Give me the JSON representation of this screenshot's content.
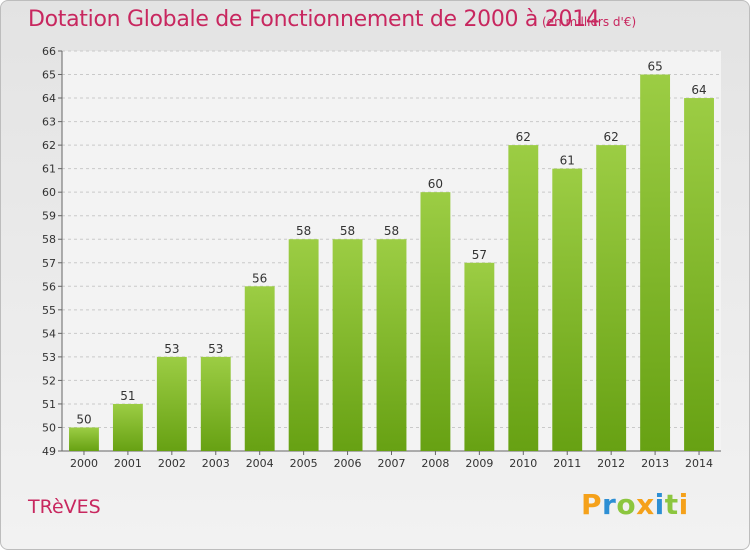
{
  "title": "Dotation Globale de Fonctionnement de 2000 à 2014",
  "subtitle": "(en milliers d'€)",
  "commune": "TRèVES",
  "logo": {
    "text": "Proxiti",
    "colors": [
      "#f5a11a",
      "#2d8fd4",
      "#8cc63f",
      "#f5a11a",
      "#2d8fd4",
      "#8cc63f",
      "#f5a11a"
    ]
  },
  "colors": {
    "title": "#c8275f",
    "bar_top": "#9ccd44",
    "bar_bottom": "#67a113",
    "background": "#ececec"
  },
  "chart_data": {
    "type": "bar",
    "categories": [
      "2000",
      "2001",
      "2002",
      "2003",
      "2004",
      "2005",
      "2006",
      "2007",
      "2008",
      "2009",
      "2010",
      "2011",
      "2012",
      "2013",
      "2014"
    ],
    "values": [
      50,
      51,
      53,
      53,
      56,
      58,
      58,
      58,
      60,
      57,
      62,
      61,
      62,
      65,
      64
    ],
    "ylim": [
      49,
      66
    ],
    "yticks": [
      49,
      50,
      51,
      52,
      53,
      54,
      55,
      56,
      57,
      58,
      59,
      60,
      61,
      62,
      63,
      64,
      65,
      66
    ],
    "grid": true,
    "data_labels": true
  }
}
